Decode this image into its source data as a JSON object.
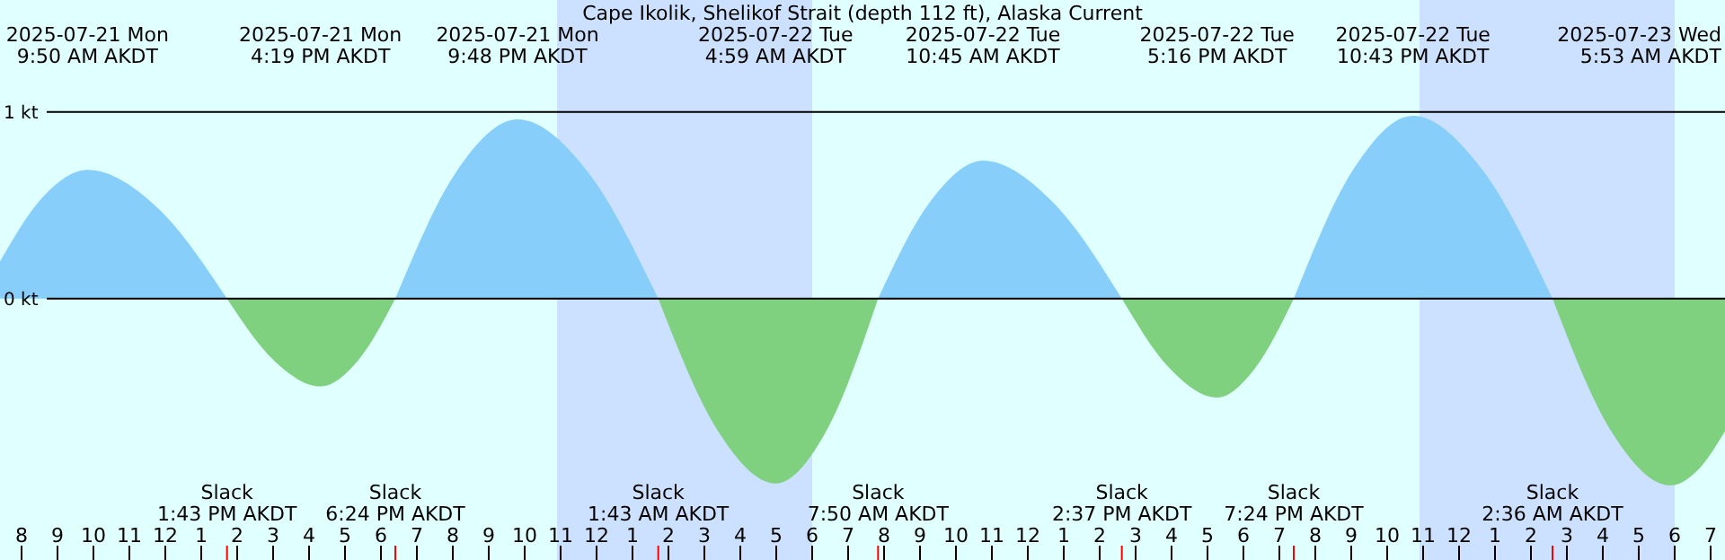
{
  "chart_data": {
    "type": "area",
    "title": "Cape Ikolik, Shelikof Strait (depth 112 ft), Alaska Current",
    "xlim": [
      "2025-07-21T07:24",
      "2025-07-23T07:24"
    ],
    "xticks": [
      {
        "value": "2025-07-21T08:00",
        "label": "8"
      },
      {
        "value": "2025-07-21T09:00",
        "label": "9"
      },
      {
        "value": "2025-07-21T10:00",
        "label": "10"
      },
      {
        "value": "2025-07-21T11:00",
        "label": "11"
      },
      {
        "value": "2025-07-21T12:00",
        "label": "12"
      },
      {
        "value": "2025-07-21T13:00",
        "label": "1"
      },
      {
        "value": "2025-07-21T14:00",
        "label": "2"
      },
      {
        "value": "2025-07-21T15:00",
        "label": "3"
      },
      {
        "value": "2025-07-21T16:00",
        "label": "4"
      },
      {
        "value": "2025-07-21T17:00",
        "label": "5"
      },
      {
        "value": "2025-07-21T18:00",
        "label": "6"
      },
      {
        "value": "2025-07-21T19:00",
        "label": "7"
      },
      {
        "value": "2025-07-21T20:00",
        "label": "8"
      },
      {
        "value": "2025-07-21T21:00",
        "label": "9"
      },
      {
        "value": "2025-07-21T22:00",
        "label": "10"
      },
      {
        "value": "2025-07-21T23:00",
        "label": "11"
      },
      {
        "value": "2025-07-22T00:00",
        "label": "12"
      },
      {
        "value": "2025-07-22T01:00",
        "label": "1"
      },
      {
        "value": "2025-07-22T02:00",
        "label": "2"
      },
      {
        "value": "2025-07-22T03:00",
        "label": "3"
      },
      {
        "value": "2025-07-22T04:00",
        "label": "4"
      },
      {
        "value": "2025-07-22T05:00",
        "label": "5"
      },
      {
        "value": "2025-07-22T06:00",
        "label": "6"
      },
      {
        "value": "2025-07-22T07:00",
        "label": "7"
      },
      {
        "value": "2025-07-22T08:00",
        "label": "8"
      },
      {
        "value": "2025-07-22T09:00",
        "label": "9"
      },
      {
        "value": "2025-07-22T10:00",
        "label": "10"
      },
      {
        "value": "2025-07-22T11:00",
        "label": "11"
      },
      {
        "value": "2025-07-22T12:00",
        "label": "12"
      },
      {
        "value": "2025-07-22T13:00",
        "label": "1"
      },
      {
        "value": "2025-07-22T14:00",
        "label": "2"
      },
      {
        "value": "2025-07-22T15:00",
        "label": "3"
      },
      {
        "value": "2025-07-22T16:00",
        "label": "4"
      },
      {
        "value": "2025-07-22T17:00",
        "label": "5"
      },
      {
        "value": "2025-07-22T18:00",
        "label": "6"
      },
      {
        "value": "2025-07-22T19:00",
        "label": "7"
      },
      {
        "value": "2025-07-22T20:00",
        "label": "8"
      },
      {
        "value": "2025-07-22T21:00",
        "label": "9"
      },
      {
        "value": "2025-07-22T22:00",
        "label": "10"
      },
      {
        "value": "2025-07-22T23:00",
        "label": "11"
      },
      {
        "value": "2025-07-23T00:00",
        "label": "12"
      },
      {
        "value": "2025-07-23T01:00",
        "label": "1"
      },
      {
        "value": "2025-07-23T02:00",
        "label": "2"
      },
      {
        "value": "2025-07-23T03:00",
        "label": "3"
      },
      {
        "value": "2025-07-23T04:00",
        "label": "4"
      },
      {
        "value": "2025-07-23T05:00",
        "label": "5"
      },
      {
        "value": "2025-07-23T06:00",
        "label": "6"
      },
      {
        "value": "2025-07-23T07:00",
        "label": "7"
      }
    ],
    "ylim": [
      -1.4,
      1.6
    ],
    "yticks": [
      {
        "value": 0,
        "label": "0 kt"
      },
      {
        "value": 1,
        "label": "1 kt"
      }
    ],
    "grid": "y",
    "bands": [
      {
        "axis": "x",
        "from": "2025-07-21T22:54",
        "to": "2025-07-22T06:00",
        "color": "#cce0ff"
      },
      {
        "axis": "x",
        "from": "2025-07-22T22:54",
        "to": "2025-07-23T06:00",
        "color": "#cce0ff"
      }
    ],
    "series": [
      {
        "color": "#87cefa",
        "x": [
          "2025-07-21T07:24",
          "2025-07-21T08:37",
          "2025-07-21T09:50",
          "2025-07-21T11:46",
          "2025-07-21T13:43",
          "2025-07-21T18:24",
          "2025-07-21T20:06",
          "2025-07-21T21:48",
          "2025-07-21T23:45",
          "2025-07-22T01:43",
          "2025-07-22T07:50",
          "2025-07-22T09:17",
          "2025-07-22T10:45",
          "2025-07-22T12:41",
          "2025-07-22T14:37",
          "2025-07-22T19:24",
          "2025-07-22T21:03",
          "2025-07-22T22:43",
          "2025-07-23T00:39",
          "2025-07-23T02:36"
        ],
        "values": [
          0.2,
          0.55,
          0.69,
          0.49,
          0,
          0,
          0.68,
          0.96,
          0.68,
          0,
          0,
          0.52,
          0.74,
          0.52,
          0,
          0,
          0.69,
          0.98,
          0.69,
          0
        ]
      },
      {
        "color": "#7fd07f",
        "x": [
          "2025-07-21T13:43",
          "2025-07-21T15:01",
          "2025-07-21T16:19",
          "2025-07-21T17:22",
          "2025-07-21T18:24",
          "2025-07-22T01:43",
          "2025-07-22T03:21",
          "2025-07-22T04:59",
          "2025-07-22T06:25",
          "2025-07-22T07:50",
          "2025-07-22T14:37",
          "2025-07-22T15:56",
          "2025-07-22T17:16",
          "2025-07-22T18:20",
          "2025-07-22T19:24",
          "2025-07-23T02:36",
          "2025-07-23T04:14",
          "2025-07-23T05:53",
          "2025-07-23T06:38",
          "2025-07-23T07:24"
        ],
        "values": [
          0,
          -0.33,
          -0.47,
          -0.33,
          0,
          0,
          -0.7,
          -0.99,
          -0.7,
          0,
          0,
          -0.37,
          -0.53,
          -0.37,
          0,
          0,
          -0.71,
          -1.0,
          -0.92,
          -0.71
        ]
      }
    ],
    "annotations": [
      "2025-07-21 Mon\n9:50 AM AKDT",
      "2025-07-21 Mon\n4:19 PM AKDT",
      "2025-07-21 Mon\n9:48 PM AKDT",
      "2025-07-22 Tue\n4:59 AM AKDT",
      "2025-07-22 Tue\n10:45 AM AKDT",
      "2025-07-22 Tue\n5:16 PM AKDT",
      "2025-07-22 Tue\n10:43 PM AKDT",
      "2025-07-23 Wed\n5:53 AM AKDT",
      "Slack\n1:43 PM AKDT",
      "Slack\n6:24 PM AKDT",
      "Slack\n1:43 AM AKDT",
      "Slack\n7:50 AM AKDT",
      "Slack\n2:37 PM AKDT",
      "Slack\n7:24 PM AKDT",
      "Slack\n2:36 AM AKDT"
    ]
  }
}
